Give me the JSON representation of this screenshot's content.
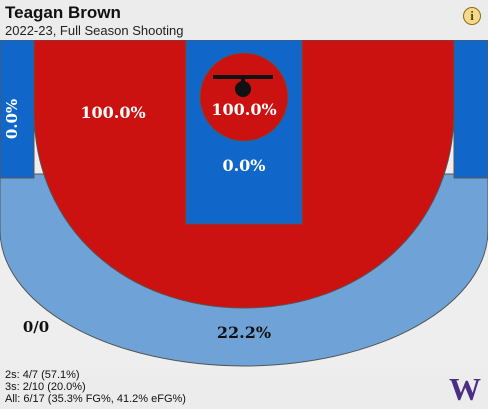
{
  "header": {
    "player_name": "Teagan Brown",
    "subtitle": "2022-23, Full Season Shooting",
    "info_icon": "info-icon",
    "info_glyph": "i"
  },
  "colors": {
    "hot": "#cc1111",
    "cold": "#1167c9",
    "light_cold": "#6fa3d8",
    "neutral": "#eeeeee",
    "outline": "#555555"
  },
  "chart_data": {
    "type": "heatmap",
    "title": "Teagan Brown",
    "subtitle": "2022-23, Full Season Shooting",
    "zones": [
      {
        "zone": "restricted-area",
        "pct_label": "100.0%",
        "fg_pct": 100.0
      },
      {
        "zone": "paint-non-ra",
        "pct_label": "0.0%",
        "fg_pct": 0.0
      },
      {
        "zone": "mid-range",
        "pct_label": "100.0%",
        "fg_pct": 100.0
      },
      {
        "zone": "corner-three-left",
        "pct_label": "0.0%",
        "fg_pct": 0.0
      },
      {
        "zone": "above-break-three",
        "pct_label": "22.2%",
        "fg_pct": 22.2
      },
      {
        "zone": "backcourt",
        "pct_label": "0/0",
        "fg_pct": null
      }
    ]
  },
  "summary": {
    "twos": "2s: 4/7 (57.1%)",
    "threes": "3s: 2/10 (20.0%)",
    "all": "All: 6/17 (35.3% FG%, 41.2% eFG%)"
  },
  "logo": {
    "text": "W",
    "icon": "washington-w-logo"
  }
}
